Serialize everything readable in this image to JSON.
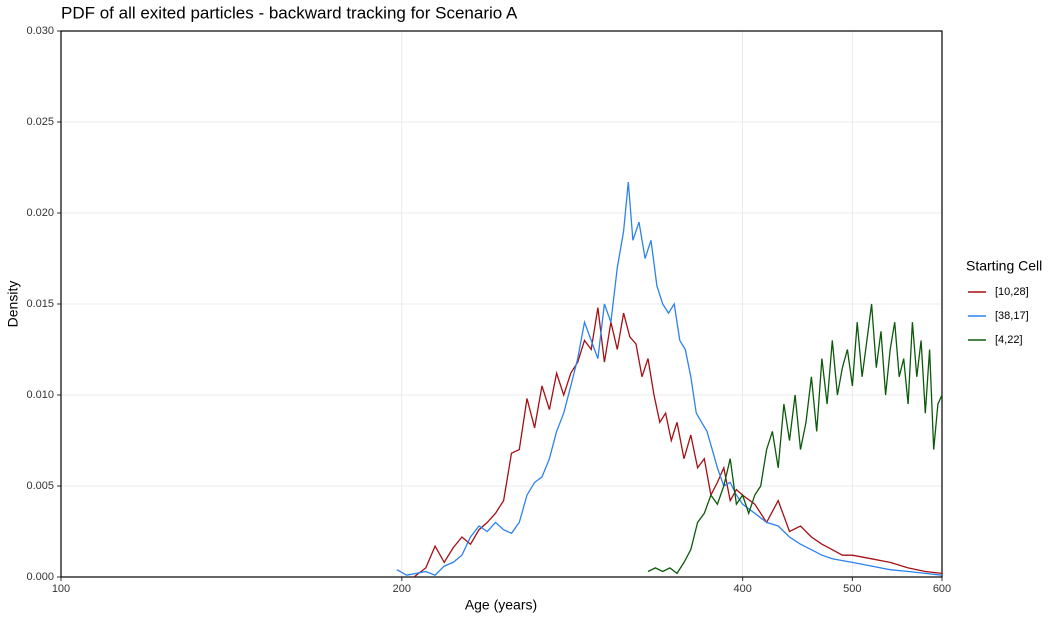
{
  "chart_data": {
    "type": "line",
    "title": "PDF of all exited particles - backward tracking for Scenario A",
    "x_label": "Age (years)",
    "y_label": "Density",
    "legend_title": "Starting Cell",
    "legend": "right",
    "x_log": true,
    "grid": true,
    "xlim": [
      100,
      600
    ],
    "xticks": [
      100,
      200,
      400,
      500,
      600
    ],
    "ylim": [
      0,
      0.03
    ],
    "yticks": [
      {
        "value": 0,
        "label": "0.000"
      },
      {
        "value": 0.005,
        "label": "0.005"
      },
      {
        "value": 0.01,
        "label": "0.010"
      },
      {
        "value": 0.015,
        "label": "0.015"
      },
      {
        "value": 0.02,
        "label": "0.020"
      },
      {
        "value": 0.025,
        "label": "0.025"
      },
      {
        "value": 0.03,
        "label": "0.030"
      }
    ],
    "series": [
      {
        "name": "[10,28]",
        "color": "#a50f15",
        "x": [
          205,
          210,
          214,
          218,
          222,
          226,
          230,
          234,
          238,
          242,
          246,
          250,
          254,
          258,
          262,
          266,
          270,
          274,
          278,
          282,
          286,
          290,
          294,
          298,
          302,
          306,
          310,
          314,
          318,
          322,
          326,
          330,
          334,
          338,
          342,
          346,
          350,
          355,
          360,
          365,
          370,
          375,
          380,
          385,
          390,
          395,
          400,
          410,
          420,
          430,
          440,
          450,
          460,
          470,
          480,
          490,
          500,
          520,
          540,
          560,
          580,
          600
        ],
        "values": [
          0,
          0.0005,
          0.0017,
          0.0008,
          0.0016,
          0.0022,
          0.0018,
          0.0026,
          0.003,
          0.0035,
          0.0042,
          0.0068,
          0.007,
          0.0098,
          0.0082,
          0.0105,
          0.0092,
          0.0112,
          0.01,
          0.0112,
          0.0118,
          0.013,
          0.0125,
          0.0148,
          0.0118,
          0.014,
          0.0125,
          0.0145,
          0.0132,
          0.0128,
          0.011,
          0.012,
          0.01,
          0.0085,
          0.009,
          0.0075,
          0.0085,
          0.0065,
          0.0078,
          0.006,
          0.0065,
          0.0045,
          0.0052,
          0.006,
          0.0042,
          0.0048,
          0.0045,
          0.004,
          0.003,
          0.0042,
          0.0025,
          0.0028,
          0.0022,
          0.0018,
          0.0015,
          0.0012,
          0.0012,
          0.001,
          0.0008,
          0.0005,
          0.0003,
          0.0002
        ]
      },
      {
        "name": "[38,17]",
        "color": "#2c82f0",
        "x": [
          198,
          202,
          206,
          210,
          214,
          218,
          222,
          226,
          230,
          234,
          238,
          242,
          246,
          250,
          254,
          258,
          262,
          266,
          270,
          274,
          278,
          282,
          286,
          290,
          294,
          298,
          302,
          306,
          310,
          314,
          317,
          320,
          324,
          328,
          332,
          336,
          340,
          344,
          348,
          352,
          356,
          360,
          364,
          368,
          372,
          376,
          380,
          385,
          390,
          395,
          400,
          410,
          420,
          430,
          440,
          450,
          460,
          470,
          480,
          490,
          500,
          520,
          540,
          560,
          580,
          600
        ],
        "values": [
          0.0004,
          0.0001,
          0.0002,
          0.0003,
          0.0001,
          0.0006,
          0.0008,
          0.0012,
          0.0022,
          0.0028,
          0.0025,
          0.003,
          0.0026,
          0.0024,
          0.003,
          0.0045,
          0.0052,
          0.0055,
          0.0065,
          0.008,
          0.009,
          0.0105,
          0.012,
          0.014,
          0.013,
          0.012,
          0.015,
          0.014,
          0.017,
          0.019,
          0.0217,
          0.0185,
          0.0195,
          0.0175,
          0.0185,
          0.016,
          0.015,
          0.0145,
          0.015,
          0.013,
          0.0125,
          0.011,
          0.009,
          0.0085,
          0.008,
          0.007,
          0.006,
          0.005,
          0.0052,
          0.0045,
          0.004,
          0.0035,
          0.003,
          0.0028,
          0.0022,
          0.0018,
          0.0015,
          0.0012,
          0.001,
          0.0009,
          0.0008,
          0.0006,
          0.0004,
          0.0003,
          0.0002,
          0.0001
        ]
      },
      {
        "name": "[4,22]",
        "color": "#0b5a0b",
        "x": [
          330,
          335,
          340,
          345,
          350,
          355,
          360,
          365,
          370,
          375,
          380,
          385,
          390,
          395,
          400,
          405,
          410,
          415,
          420,
          425,
          430,
          435,
          440,
          445,
          450,
          455,
          460,
          465,
          470,
          475,
          480,
          485,
          490,
          495,
          500,
          505,
          510,
          515,
          520,
          525,
          530,
          535,
          540,
          545,
          550,
          555,
          560,
          565,
          570,
          575,
          580,
          585,
          590,
          595,
          600
        ],
        "values": [
          0.0003,
          0.0005,
          0.0003,
          0.0005,
          0.0002,
          0.0008,
          0.0015,
          0.003,
          0.0035,
          0.0045,
          0.004,
          0.005,
          0.0065,
          0.004,
          0.0045,
          0.0035,
          0.0045,
          0.005,
          0.007,
          0.008,
          0.006,
          0.0095,
          0.0075,
          0.01,
          0.007,
          0.0085,
          0.011,
          0.008,
          0.012,
          0.0095,
          0.013,
          0.01,
          0.0115,
          0.0125,
          0.0105,
          0.014,
          0.011,
          0.013,
          0.015,
          0.0115,
          0.0135,
          0.01,
          0.0125,
          0.014,
          0.011,
          0.012,
          0.0095,
          0.014,
          0.011,
          0.013,
          0.009,
          0.0125,
          0.007,
          0.0095,
          0.01
        ]
      }
    ]
  }
}
